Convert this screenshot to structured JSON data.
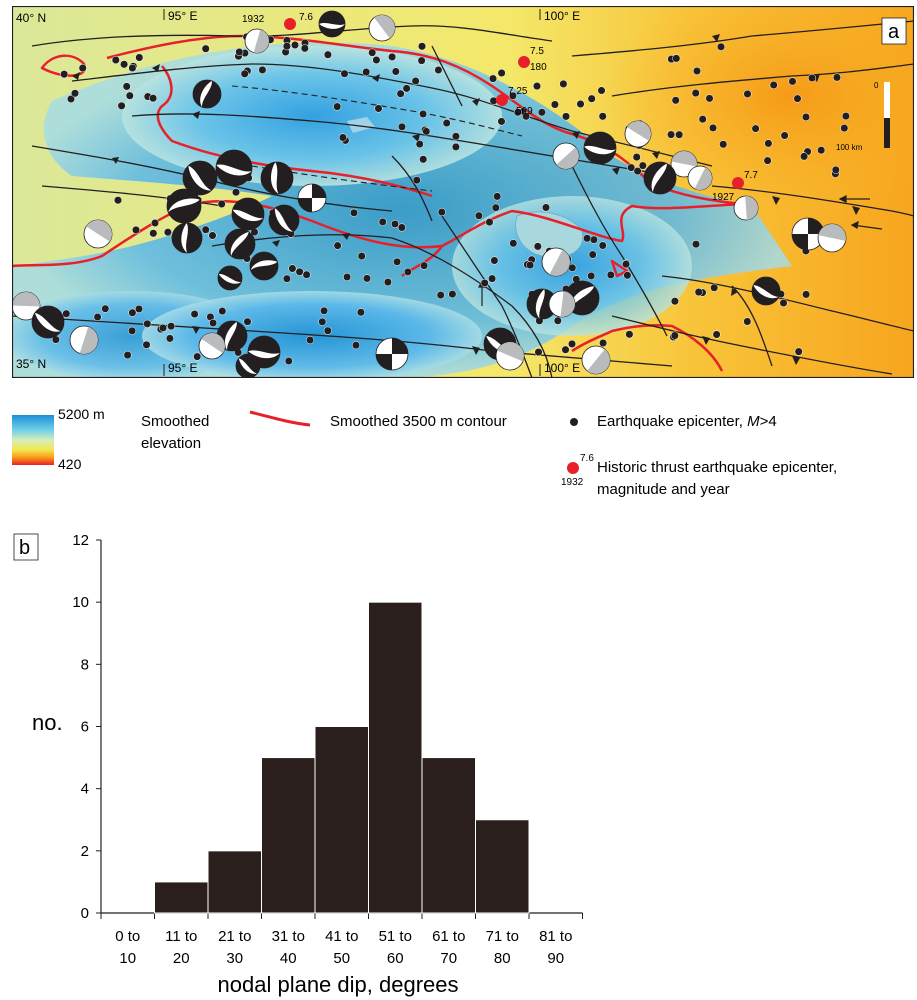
{
  "map": {
    "panel_label": "a",
    "lat_labels": [
      "40° N",
      "35° N"
    ],
    "lon_labels_top": [
      "95° E",
      "100° E"
    ],
    "lon_labels_bottom": [
      "95° E",
      "100° E"
    ],
    "scale_bar": {
      "top": "0",
      "bottom": "100 km"
    },
    "historic_quakes": [
      {
        "magnitude": "7.6",
        "year": "1932"
      },
      {
        "magnitude": "7.5",
        "year": "180"
      },
      {
        "magnitude": "7.25",
        "year": "509"
      },
      {
        "magnitude": "7.7",
        "year": "1927"
      }
    ],
    "colors": {
      "low": "#f9a21b",
      "mid": "#f7ef5a",
      "green": "#cfe6a0",
      "high": "#1b8fd6",
      "contour": "#e8202a",
      "quake": "#e8202a"
    }
  },
  "legend": {
    "elevation_max": "5200 m",
    "elevation_min": "420",
    "elevation_label_1": "Smoothed",
    "elevation_label_2": "elevation",
    "contour_label": "Smoothed 3500 m contour",
    "epicenter_label": "Earthquake epicenter, ",
    "epicenter_label_m": "M",
    "epicenter_label_tail": ">4",
    "historic_mag": "7.6",
    "historic_year": "1932",
    "historic_label_1": "Historic thrust earthquake epicenter,",
    "historic_label_2": "magnitude and year"
  },
  "chart_data": {
    "type": "bar",
    "panel_label": "b",
    "categories": [
      [
        "0 to",
        "10"
      ],
      [
        "11 to",
        "20"
      ],
      [
        "21 to",
        "30"
      ],
      [
        "31 to",
        "40"
      ],
      [
        "41 to",
        "50"
      ],
      [
        "51 to",
        "60"
      ],
      [
        "61 to",
        "70"
      ],
      [
        "71 to",
        "80"
      ],
      [
        "81 to",
        "90"
      ]
    ],
    "values": [
      0,
      1,
      2,
      5,
      6,
      10,
      5,
      3,
      0
    ],
    "ylabel": "no.",
    "xlabel": "nodal plane dip, degrees",
    "ylim": [
      0,
      12
    ],
    "yticks": [
      0,
      2,
      4,
      6,
      8,
      10,
      12
    ],
    "bar_color": "#2b1f1d",
    "grid": false
  }
}
